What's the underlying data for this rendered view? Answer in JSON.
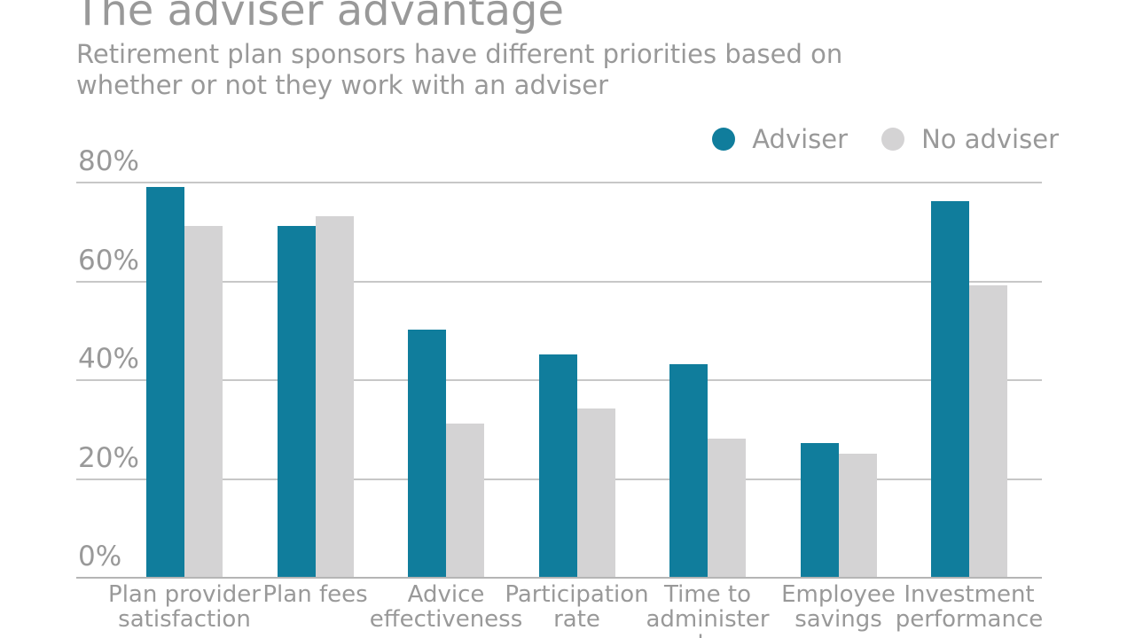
{
  "title": "The adviser advantage",
  "subtitle_line1": "Retirement plan sponsors have different priorities based on",
  "subtitle_line2": "whether or not they work with an adviser",
  "colors": {
    "adviser_teal": "#107d9c",
    "no_adviser_gray": "#d4d3d4",
    "grid": "#c7c7c7",
    "baseline": "#b5b5b5",
    "text_gray": "#999999"
  },
  "legend": {
    "items": [
      {
        "label": "Adviser",
        "swatch": "circle",
        "color": "#107d9c"
      },
      {
        "label": "No adviser",
        "swatch": "circle",
        "color": "#d4d3d4"
      }
    ]
  },
  "y_axis": {
    "tick_labels": [
      "80%",
      "60%",
      "40%",
      "20%",
      "0%"
    ],
    "tick_values": [
      80,
      60,
      40,
      20,
      0
    ]
  },
  "category_label_lines": [
    [
      "Plan provider",
      "satisfaction"
    ],
    [
      "Plan fees"
    ],
    [
      "Advice",
      "effectiveness"
    ],
    [
      "Participation",
      "rate"
    ],
    [
      "Time to",
      "administer",
      "plan"
    ],
    [
      "Employee",
      "savings"
    ],
    [
      "Investment",
      "performance"
    ]
  ],
  "chart_data": {
    "type": "bar",
    "title": "The adviser advantage",
    "subtitle": "Retirement plan sponsors have different priorities based on whether or not they work with an adviser",
    "categories": [
      "Plan provider satisfaction",
      "Plan fees",
      "Advice effectiveness",
      "Participation rate",
      "Time to administer plan",
      "Employee savings",
      "Investment performance"
    ],
    "series": [
      {
        "name": "Adviser",
        "color": "#107d9c",
        "values": [
          79,
          71,
          50,
          45,
          43,
          27,
          76
        ]
      },
      {
        "name": "No adviser",
        "color": "#d4d3d4",
        "values": [
          71,
          73,
          31,
          34,
          28,
          25,
          59
        ]
      }
    ],
    "ylabel": "",
    "ylim": [
      0,
      80
    ],
    "yticks": [
      0,
      20,
      40,
      60,
      80
    ],
    "unit": "percent",
    "grid": true,
    "legend_position": "top-right",
    "bar_orientation": "vertical"
  }
}
